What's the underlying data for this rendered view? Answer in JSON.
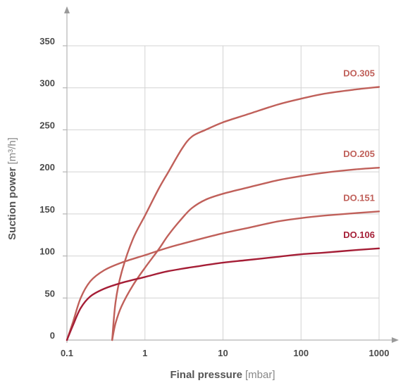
{
  "chart_data": {
    "type": "line",
    "xlabel": "Final pressure",
    "xlabel_unit": "[mbar]",
    "ylabel": "Suction power",
    "ylabel_unit": "[m³/h]",
    "xscale": "log",
    "xlim": [
      0.1,
      1000
    ],
    "ylim": [
      0,
      350
    ],
    "x_ticks": [
      "0.1",
      "1",
      "10",
      "100",
      "1000"
    ],
    "y_ticks": [
      "0",
      "50",
      "100",
      "150",
      "200",
      "250",
      "300",
      "350"
    ],
    "grid": true,
    "series": [
      {
        "name": "DO.305",
        "color": "#c0605a",
        "points": [
          [
            0.38,
            0
          ],
          [
            0.42,
            45
          ],
          [
            0.5,
            80
          ],
          [
            0.7,
            120
          ],
          [
            1,
            148
          ],
          [
            1.5,
            180
          ],
          [
            2,
            200
          ],
          [
            3,
            228
          ],
          [
            4,
            242
          ],
          [
            6,
            250
          ],
          [
            10,
            259
          ],
          [
            20,
            268
          ],
          [
            50,
            280
          ],
          [
            100,
            287
          ],
          [
            200,
            293
          ],
          [
            500,
            298
          ],
          [
            1000,
            301
          ]
        ]
      },
      {
        "name": "DO.205",
        "color": "#c0605a",
        "points": [
          [
            0.38,
            0
          ],
          [
            0.42,
            20
          ],
          [
            0.5,
            40
          ],
          [
            0.7,
            65
          ],
          [
            1,
            86
          ],
          [
            1.5,
            108
          ],
          [
            2,
            125
          ],
          [
            3,
            145
          ],
          [
            4,
            157
          ],
          [
            6,
            167
          ],
          [
            10,
            174
          ],
          [
            20,
            181
          ],
          [
            50,
            190
          ],
          [
            100,
            195
          ],
          [
            200,
            199
          ],
          [
            500,
            203
          ],
          [
            1000,
            205
          ]
        ]
      },
      {
        "name": "DO.151",
        "color": "#c0605a",
        "points": [
          [
            0.1,
            0
          ],
          [
            0.12,
            22
          ],
          [
            0.15,
            50
          ],
          [
            0.2,
            70
          ],
          [
            0.3,
            83
          ],
          [
            0.5,
            92
          ],
          [
            1,
            101
          ],
          [
            2,
            110
          ],
          [
            5,
            120
          ],
          [
            10,
            127
          ],
          [
            20,
            133
          ],
          [
            50,
            141
          ],
          [
            100,
            145
          ],
          [
            200,
            148
          ],
          [
            500,
            151
          ],
          [
            1000,
            153
          ]
        ]
      },
      {
        "name": "DO.106",
        "color": "#a51e36",
        "points": [
          [
            0.1,
            0
          ],
          [
            0.12,
            18
          ],
          [
            0.15,
            38
          ],
          [
            0.2,
            52
          ],
          [
            0.3,
            61
          ],
          [
            0.5,
            68
          ],
          [
            1,
            75
          ],
          [
            2,
            82
          ],
          [
            5,
            88
          ],
          [
            10,
            92
          ],
          [
            20,
            95
          ],
          [
            50,
            99
          ],
          [
            100,
            102
          ],
          [
            200,
            104
          ],
          [
            500,
            107
          ],
          [
            1000,
            109
          ]
        ]
      }
    ]
  }
}
